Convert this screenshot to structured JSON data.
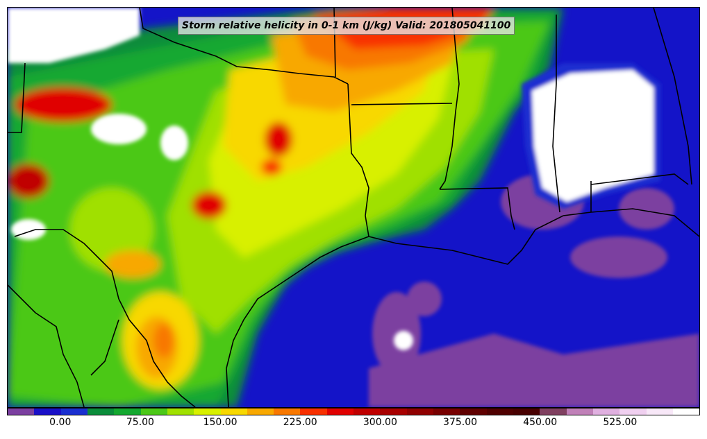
{
  "title": "Storm relative helicity in 0-1 km (J/kg) Valid: 201805041100",
  "colorbar": {
    "min": -50,
    "max": 600,
    "step": 25,
    "colors": [
      "#7b3fa0",
      "#1a10c8",
      "#1a2fd0",
      "#0a8c3a",
      "#14a830",
      "#4cc818",
      "#a0e000",
      "#d8f000",
      "#f8d800",
      "#f8a800",
      "#f87800",
      "#f83000",
      "#e00000",
      "#c00000",
      "#a80000",
      "#900000",
      "#780000",
      "#600000",
      "#500000",
      "#480000",
      "#804060",
      "#c080b8",
      "#e0b0e0",
      "#f0d0f0",
      "#f8e8f8",
      "#ffffff"
    ],
    "tick_labels": [
      "0.00",
      "75.00",
      "150.00",
      "225.00",
      "300.00",
      "375.00",
      "450.00",
      "525.00"
    ],
    "tick_values": [
      0,
      75,
      150,
      225,
      300,
      375,
      450,
      525
    ]
  }
}
